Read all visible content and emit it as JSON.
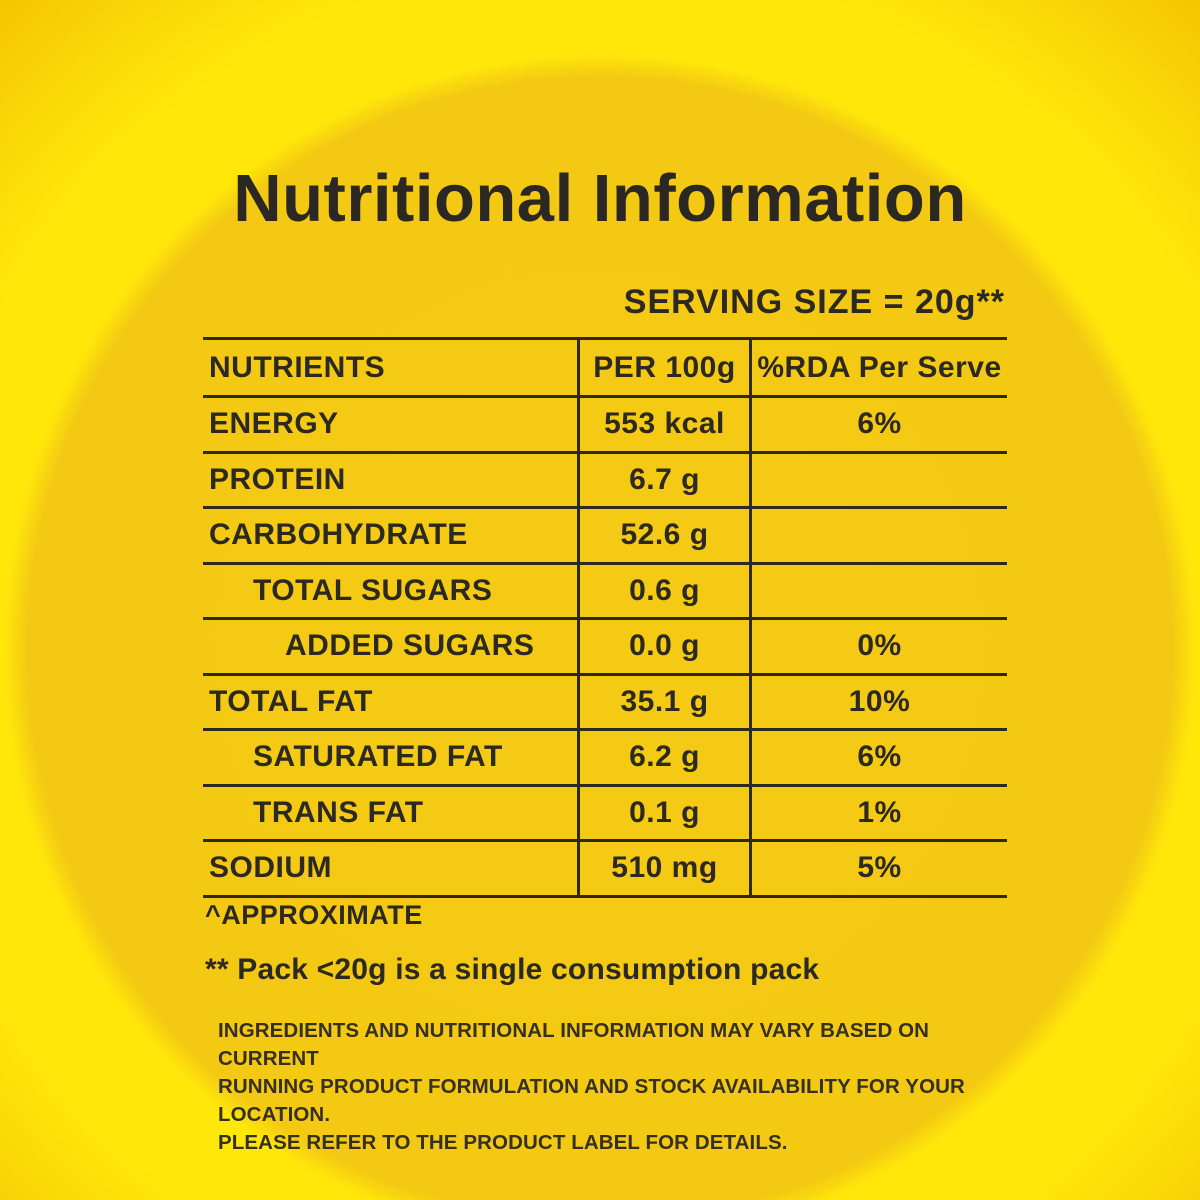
{
  "title": "Nutritional Information",
  "serving_size": "SERVING SIZE = 20g**",
  "table": {
    "header": {
      "nutrients": "NUTRIENTS",
      "per_100g": "PER 100g",
      "rda": "%RDA Per Serve"
    },
    "rows": [
      {
        "label": "ENERGY",
        "per_100g": "553 kcal",
        "rda": "6%",
        "indent": 0
      },
      {
        "label": "PROTEIN",
        "per_100g": "6.7 g",
        "rda": "",
        "indent": 0
      },
      {
        "label": "CARBOHYDRATE",
        "per_100g": "52.6 g",
        "rda": "",
        "indent": 0
      },
      {
        "label": "TOTAL SUGARS",
        "per_100g": "0.6 g",
        "rda": "",
        "indent": 1
      },
      {
        "label": "ADDED SUGARS",
        "per_100g": "0.0 g",
        "rda": "0%",
        "indent": 2
      },
      {
        "label": "TOTAL FAT",
        "per_100g": "35.1 g",
        "rda": "10%",
        "indent": 0
      },
      {
        "label": "SATURATED FAT",
        "per_100g": "6.2 g",
        "rda": "6%",
        "indent": 1
      },
      {
        "label": "TRANS FAT",
        "per_100g": "0.1 g",
        "rda": "1%",
        "indent": 1
      },
      {
        "label": "SODIUM",
        "per_100g": "510 mg",
        "rda": "5%",
        "indent": 0
      }
    ]
  },
  "footnotes": {
    "approximate": "^APPROXIMATE",
    "pack_note": "** Pack <20g is a single consumption pack"
  },
  "disclaimer": {
    "line1": "INGREDIENTS AND NUTRITIONAL INFORMATION MAY VARY BASED ON CURRENT",
    "line2": "RUNNING PRODUCT FORMULATION AND STOCK AVAILABILITY FOR YOUR LOCATION.",
    "line3": "PLEASE REFER TO THE PRODUCT LABEL FOR DETAILS."
  },
  "colors": {
    "background_inner_circle": "#f4ca14",
    "background_ring": "#ffe70a",
    "background_corner": "#f3c302",
    "text": "#2c2922"
  }
}
